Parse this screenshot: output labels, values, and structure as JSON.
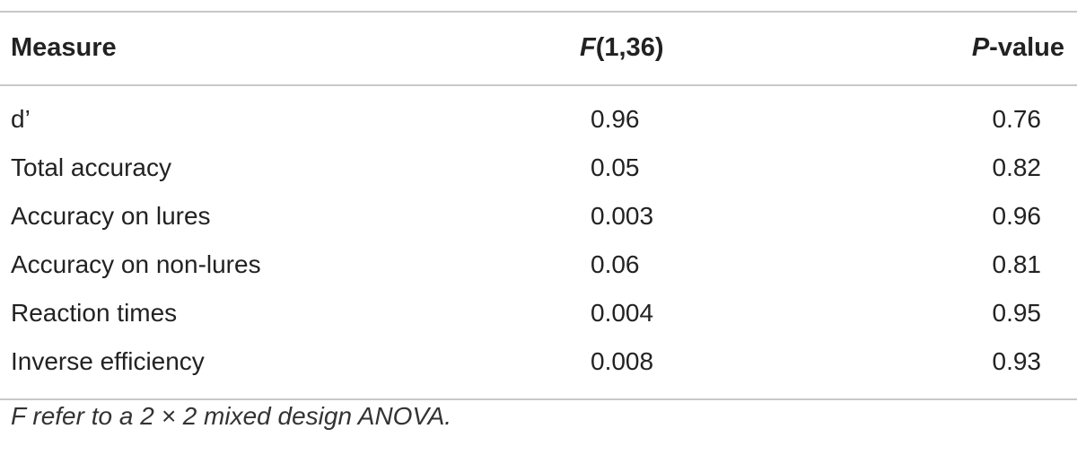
{
  "table": {
    "header": {
      "measure": "Measure",
      "f_italic": "F",
      "f_rest": "(1,36)",
      "p_italic": "P",
      "p_rest": "-value"
    },
    "rows": [
      {
        "measure": "d’",
        "f": "0.96",
        "p": "0.76"
      },
      {
        "measure": "Total accuracy",
        "f": "0.05",
        "p": "0.82"
      },
      {
        "measure": "Accuracy on lures",
        "f": "0.003",
        "p": "0.96"
      },
      {
        "measure": "Accuracy on non-lures",
        "f": "0.06",
        "p": "0.81"
      },
      {
        "measure": "Reaction times",
        "f": "0.004",
        "p": "0.95"
      },
      {
        "measure": "Inverse efficiency",
        "f": "0.008",
        "p": "0.93"
      }
    ]
  },
  "footnote": "F refer to a 2 × 2 mixed design ANOVA."
}
